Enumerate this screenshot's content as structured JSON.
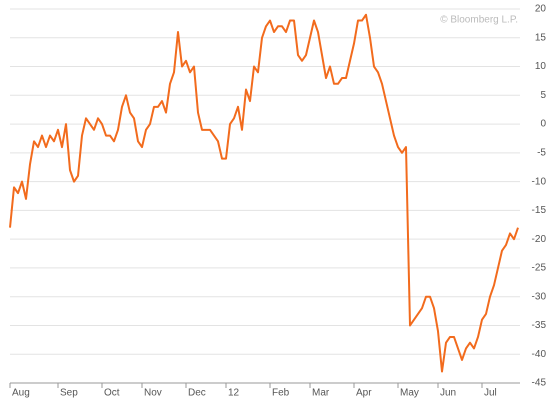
{
  "chart_data": {
    "type": "line",
    "annotation": "© Bloomberg L.P.",
    "categories": [
      "Aug",
      null,
      null,
      null,
      null,
      null,
      null,
      null,
      null,
      null,
      null,
      null,
      "Sep",
      null,
      null,
      null,
      null,
      null,
      null,
      null,
      null,
      null,
      null,
      "Oct",
      null,
      null,
      null,
      null,
      null,
      null,
      null,
      null,
      null,
      "Nov",
      null,
      null,
      null,
      null,
      null,
      null,
      null,
      null,
      null,
      null,
      "Dec",
      null,
      null,
      null,
      null,
      null,
      null,
      null,
      null,
      null,
      "12",
      null,
      null,
      null,
      null,
      null,
      null,
      null,
      null,
      null,
      null,
      "Feb",
      null,
      null,
      null,
      null,
      null,
      null,
      null,
      null,
      null,
      "Mar",
      null,
      null,
      null,
      null,
      null,
      null,
      null,
      null,
      null,
      null,
      "Apr",
      null,
      null,
      null,
      null,
      null,
      null,
      null,
      null,
      null,
      null,
      "May",
      null,
      null,
      null,
      null,
      null,
      null,
      null,
      null,
      null,
      "Jun",
      null,
      null,
      null,
      null,
      null,
      null,
      null,
      null,
      null,
      null,
      "Jul",
      null,
      null,
      null,
      null,
      null,
      null,
      null,
      null,
      null
    ],
    "values": [
      -18,
      -11,
      -12,
      -10,
      -13,
      -7,
      -3,
      -4,
      -2,
      -4,
      -2,
      -3,
      -1,
      -4,
      0,
      -8,
      -10,
      -9,
      -2,
      1,
      0,
      -1,
      1,
      0,
      -2,
      -2,
      -3,
      -1,
      3,
      5,
      2,
      1,
      -3,
      -4,
      -1,
      0,
      3,
      3,
      4,
      2,
      7,
      9,
      16,
      10,
      11,
      9,
      10,
      2,
      -1,
      -1,
      -1,
      -2,
      -3,
      -6,
      -6,
      0,
      1,
      3,
      -1,
      6,
      4,
      10,
      9,
      15,
      17,
      18,
      16,
      17,
      17,
      16,
      18,
      18,
      12,
      11,
      12,
      15,
      18,
      16,
      12,
      8,
      10,
      7,
      7,
      8,
      8,
      11,
      14,
      18,
      18,
      19,
      15,
      10,
      9,
      7,
      4,
      1,
      -2,
      -4,
      -5,
      -4,
      -35,
      -34,
      -33,
      -32,
      -30,
      -30,
      -32,
      -36,
      -43,
      -38,
      -37,
      -37,
      -39,
      -41,
      -39,
      -38,
      -39,
      -37,
      -34,
      -33,
      -30,
      -28,
      -25,
      -22,
      -21,
      -19,
      -20,
      -18
    ],
    "color": "#f26b1d",
    "ylim": [
      -45,
      20
    ],
    "yticks": [
      -45,
      -40,
      -35,
      -30,
      -25,
      -20,
      -15,
      -10,
      -5,
      0,
      5,
      10,
      15,
      20
    ],
    "grid": true
  }
}
